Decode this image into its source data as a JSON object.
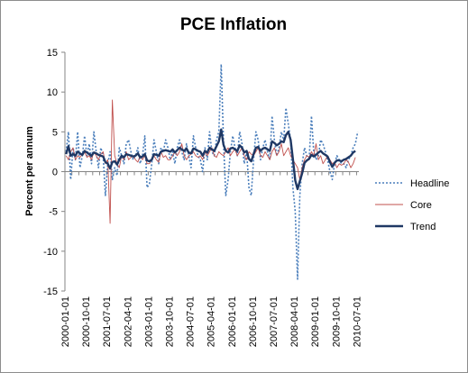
{
  "chart_data": {
    "type": "line",
    "title": "PCE Inflation",
    "xlabel": "",
    "ylabel": "Percent per annum",
    "ylim": [
      -15,
      15
    ],
    "yticks": [
      15,
      10,
      5,
      0,
      -5,
      -10,
      -15
    ],
    "grid": false,
    "legend_position": "right",
    "x_tick_labels": [
      "2000-01-01",
      "2000-10-01",
      "2001-07-01",
      "2002-04-01",
      "2003-01-01",
      "2003-10-01",
      "2004-07-01",
      "2005-04-01",
      "2006-01-01",
      "2006-10-01",
      "2007-07-01",
      "2008-04-01",
      "2009-01-01",
      "2009-10-01",
      "2010-07-01"
    ],
    "start_month": "2000-01",
    "series": [
      {
        "name": "Headline",
        "color": "#4a7ebb",
        "style": "dotted",
        "values": [
          2.5,
          5.0,
          -1.0,
          3.0,
          1.5,
          5.0,
          0.5,
          2.0,
          4.5,
          2.0,
          3.5,
          1.0,
          5.0,
          2.5,
          0.5,
          3.0,
          2.0,
          -3.0,
          1.0,
          2.5,
          -1.0,
          0.5,
          -0.5,
          3.0,
          2.0,
          1.0,
          3.5,
          4.0,
          2.5,
          1.5,
          2.0,
          3.0,
          1.0,
          2.0,
          4.5,
          -2.0,
          -1.5,
          1.0,
          4.0,
          2.5,
          1.0,
          3.0,
          2.5,
          4.0,
          3.0,
          1.5,
          2.5,
          1.0,
          3.0,
          4.0,
          2.5,
          1.5,
          3.5,
          2.0,
          0.5,
          4.5,
          3.0,
          2.0,
          1.5,
          0.0,
          3.0,
          1.5,
          5.0,
          2.5,
          2.0,
          4.0,
          5.0,
          13.5,
          4.0,
          -3.0,
          -1.0,
          2.5,
          4.5,
          3.0,
          2.0,
          5.0,
          3.5,
          1.0,
          2.5,
          -2.0,
          -3.0,
          1.5,
          5.0,
          4.0,
          1.5,
          3.0,
          4.0,
          2.5,
          1.5,
          7.0,
          4.0,
          2.0,
          3.0,
          5.0,
          4.0,
          8.0,
          6.0,
          4.0,
          -2.0,
          -5.0,
          -13.5,
          -3.0,
          1.0,
          3.0,
          2.0,
          1.5,
          7.0,
          2.5,
          1.5,
          2.0,
          4.0,
          3.5,
          2.5,
          1.5,
          0.0,
          -1.0,
          1.0,
          2.0,
          1.5,
          1.0,
          1.0,
          0.5,
          1.5,
          2.0,
          3.0,
          3.5,
          5.0
        ]
      },
      {
        "name": "Core",
        "color": "#c0504d",
        "style": "solid",
        "values": [
          2.0,
          1.5,
          2.5,
          3.0,
          1.5,
          2.0,
          1.8,
          2.2,
          2.5,
          1.8,
          2.0,
          1.5,
          2.5,
          2.0,
          1.5,
          2.2,
          2.5,
          1.0,
          1.5,
          -6.5,
          9.0,
          2.0,
          1.0,
          0.5,
          2.0,
          1.5,
          2.5,
          1.5,
          1.8,
          2.0,
          1.5,
          1.2,
          2.0,
          1.5,
          2.0,
          1.0,
          1.0,
          1.5,
          2.0,
          1.5,
          1.2,
          2.5,
          1.8,
          2.0,
          1.5,
          1.5,
          2.0,
          2.5,
          2.0,
          2.5,
          3.5,
          2.0,
          1.5,
          2.0,
          2.2,
          2.5,
          2.0,
          1.8,
          2.0,
          1.5,
          2.5,
          2.0,
          2.5,
          3.0,
          2.0,
          1.8,
          2.5,
          2.2,
          2.0,
          2.5,
          3.0,
          2.0,
          2.5,
          2.8,
          2.0,
          2.5,
          3.0,
          2.0,
          1.5,
          2.5,
          2.2,
          2.0,
          2.5,
          3.0,
          2.0,
          1.8,
          2.5,
          2.0,
          1.5,
          2.5,
          3.0,
          2.0,
          2.5,
          3.5,
          2.0,
          2.5,
          3.0,
          2.0,
          1.5,
          1.0,
          0.5,
          -1.0,
          0.5,
          1.5,
          2.0,
          1.8,
          2.5,
          2.0,
          3.5,
          1.5,
          2.0,
          1.0,
          1.5,
          2.0,
          1.5,
          1.0,
          1.2,
          0.5,
          1.0,
          0.8,
          1.0,
          1.5,
          1.2,
          0.5,
          1.0,
          1.8
        ]
      },
      {
        "name": "Trend",
        "color": "#1f3864",
        "style": "solid-thick",
        "values": [
          2.2,
          3.2,
          2.0,
          2.2,
          2.0,
          2.5,
          2.3,
          2.1,
          2.6,
          2.4,
          2.2,
          2.0,
          2.4,
          2.3,
          2.1,
          2.0,
          1.9,
          1.2,
          1.0,
          0.4,
          1.2,
          1.3,
          0.9,
          1.5,
          2.0,
          1.8,
          2.2,
          2.1,
          2.0,
          1.9,
          2.0,
          2.3,
          1.8,
          1.9,
          2.2,
          1.4,
          1.3,
          1.5,
          2.2,
          2.1,
          2.0,
          2.5,
          2.6,
          2.7,
          2.6,
          2.5,
          2.8,
          2.4,
          2.7,
          3.0,
          2.8,
          2.6,
          2.9,
          2.4,
          2.3,
          2.9,
          2.8,
          2.6,
          2.5,
          2.0,
          2.6,
          2.4,
          3.0,
          2.8,
          2.6,
          3.2,
          3.8,
          5.3,
          3.4,
          2.6,
          2.4,
          2.9,
          3.0,
          2.8,
          2.6,
          3.3,
          3.0,
          2.4,
          2.6,
          1.6,
          1.3,
          2.2,
          3.0,
          3.1,
          2.6,
          2.9,
          3.0,
          2.8,
          2.6,
          3.8,
          3.6,
          3.3,
          3.5,
          3.8,
          3.7,
          4.6,
          5.0,
          4.0,
          1.6,
          -1.1,
          -2.2,
          -1.2,
          -0.2,
          1.1,
          1.4,
          1.6,
          2.1,
          1.9,
          2.1,
          2.4,
          2.6,
          2.3,
          2.1,
          1.9,
          1.2,
          0.6,
          1.1,
          1.4,
          1.4,
          1.3,
          1.5,
          1.6,
          1.8,
          2.0,
          2.4,
          2.6
        ]
      }
    ]
  }
}
